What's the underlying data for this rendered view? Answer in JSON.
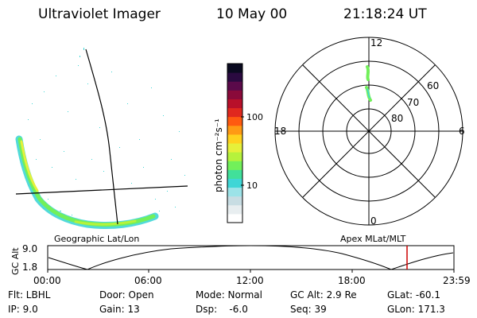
{
  "header": {
    "instrument": "Ultraviolet Imager",
    "date": "10 May 00",
    "time": "21:18:24 UT"
  },
  "colorbar": {
    "unit_label": "photon cm⁻²s⁻¹",
    "tick_100": "100",
    "tick_10": "10",
    "colors": [
      "#ffffff",
      "#e8eef0",
      "#c8dde3",
      "#9ce3e8",
      "#3fd6d6",
      "#41e09a",
      "#72f05a",
      "#b6f23c",
      "#e6f03a",
      "#ffd21e",
      "#ff9a14",
      "#ff5a10",
      "#e0281e",
      "#b8102a",
      "#8a0a3a",
      "#5a0a4a",
      "#2a0a40",
      "#0a0a20"
    ]
  },
  "polar": {
    "label_12": "12",
    "label_18": "18",
    "label_6": "6",
    "label_0": "0",
    "label_60": "60",
    "label_70": "70",
    "label_80": "80"
  },
  "captions": {
    "left": "Geographic Lat/Lon",
    "right": "Apex MLat/MLT"
  },
  "altitude_plot": {
    "ylabel": "GC Alt",
    "y_top": "9.0",
    "y_bottom": "1.8",
    "x_ticks": [
      "00:00",
      "06:00",
      "12:00",
      "18:00",
      "23:59"
    ],
    "marker_color": "#cc0000"
  },
  "info": {
    "flt": "Flt: LBHL",
    "door": "Door: Open",
    "mode": "Mode: Normal",
    "gc_alt": "GC Alt: 2.9 Re",
    "glat": "GLat: -60.1",
    "ip": "IP: 9.0",
    "gain": "Gain: 13",
    "dsp": "Dsp:    -6.0",
    "seq": "Seq: 39",
    "glon": "GLon: 171.3"
  }
}
